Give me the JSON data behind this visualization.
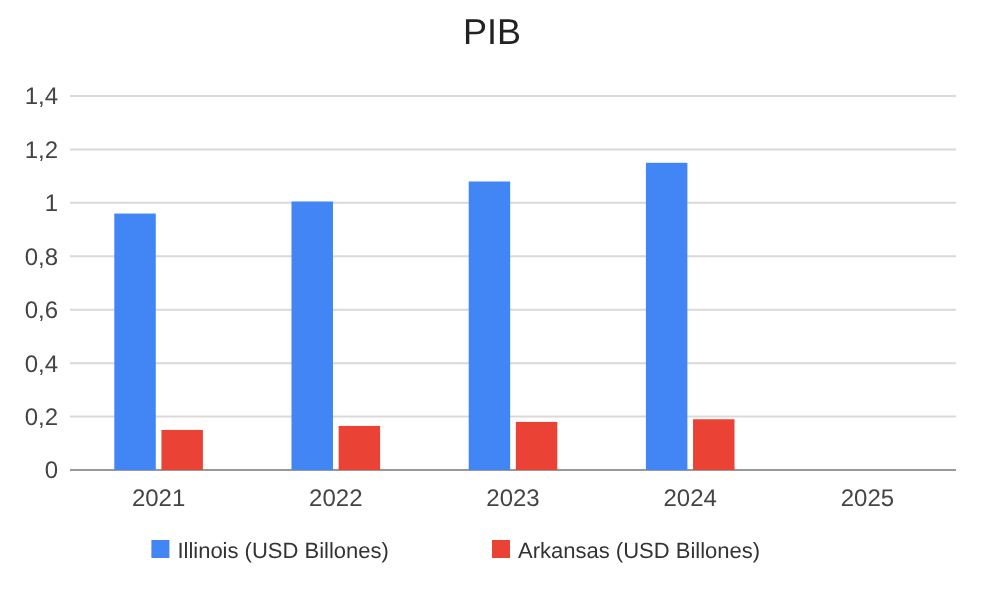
{
  "chart_data": {
    "type": "bar",
    "title": "PIB",
    "categories": [
      "2021",
      "2022",
      "2023",
      "2024",
      "2025"
    ],
    "series": [
      {
        "name": "Illinois (USD Billones)",
        "color": "#4285f4",
        "values": [
          0.96,
          1.005,
          1.08,
          1.15,
          null
        ]
      },
      {
        "name": "Arkansas (USD Billones)",
        "color": "#ea4335",
        "values": [
          0.15,
          0.165,
          0.18,
          0.19,
          null
        ]
      }
    ],
    "ylim": [
      0,
      1.4
    ],
    "yticks": [
      0,
      {
        "value": 0.2,
        "label": "0,2"
      },
      {
        "value": 0.4,
        "label": "0,4"
      },
      {
        "value": 0.6,
        "label": "0,6"
      },
      {
        "value": 0.8,
        "label": "0,8"
      },
      1,
      {
        "value": 1.2,
        "label": "1,2"
      },
      {
        "value": 1.4,
        "label": "1,4"
      }
    ],
    "grid": "y",
    "legend": "bottom"
  }
}
